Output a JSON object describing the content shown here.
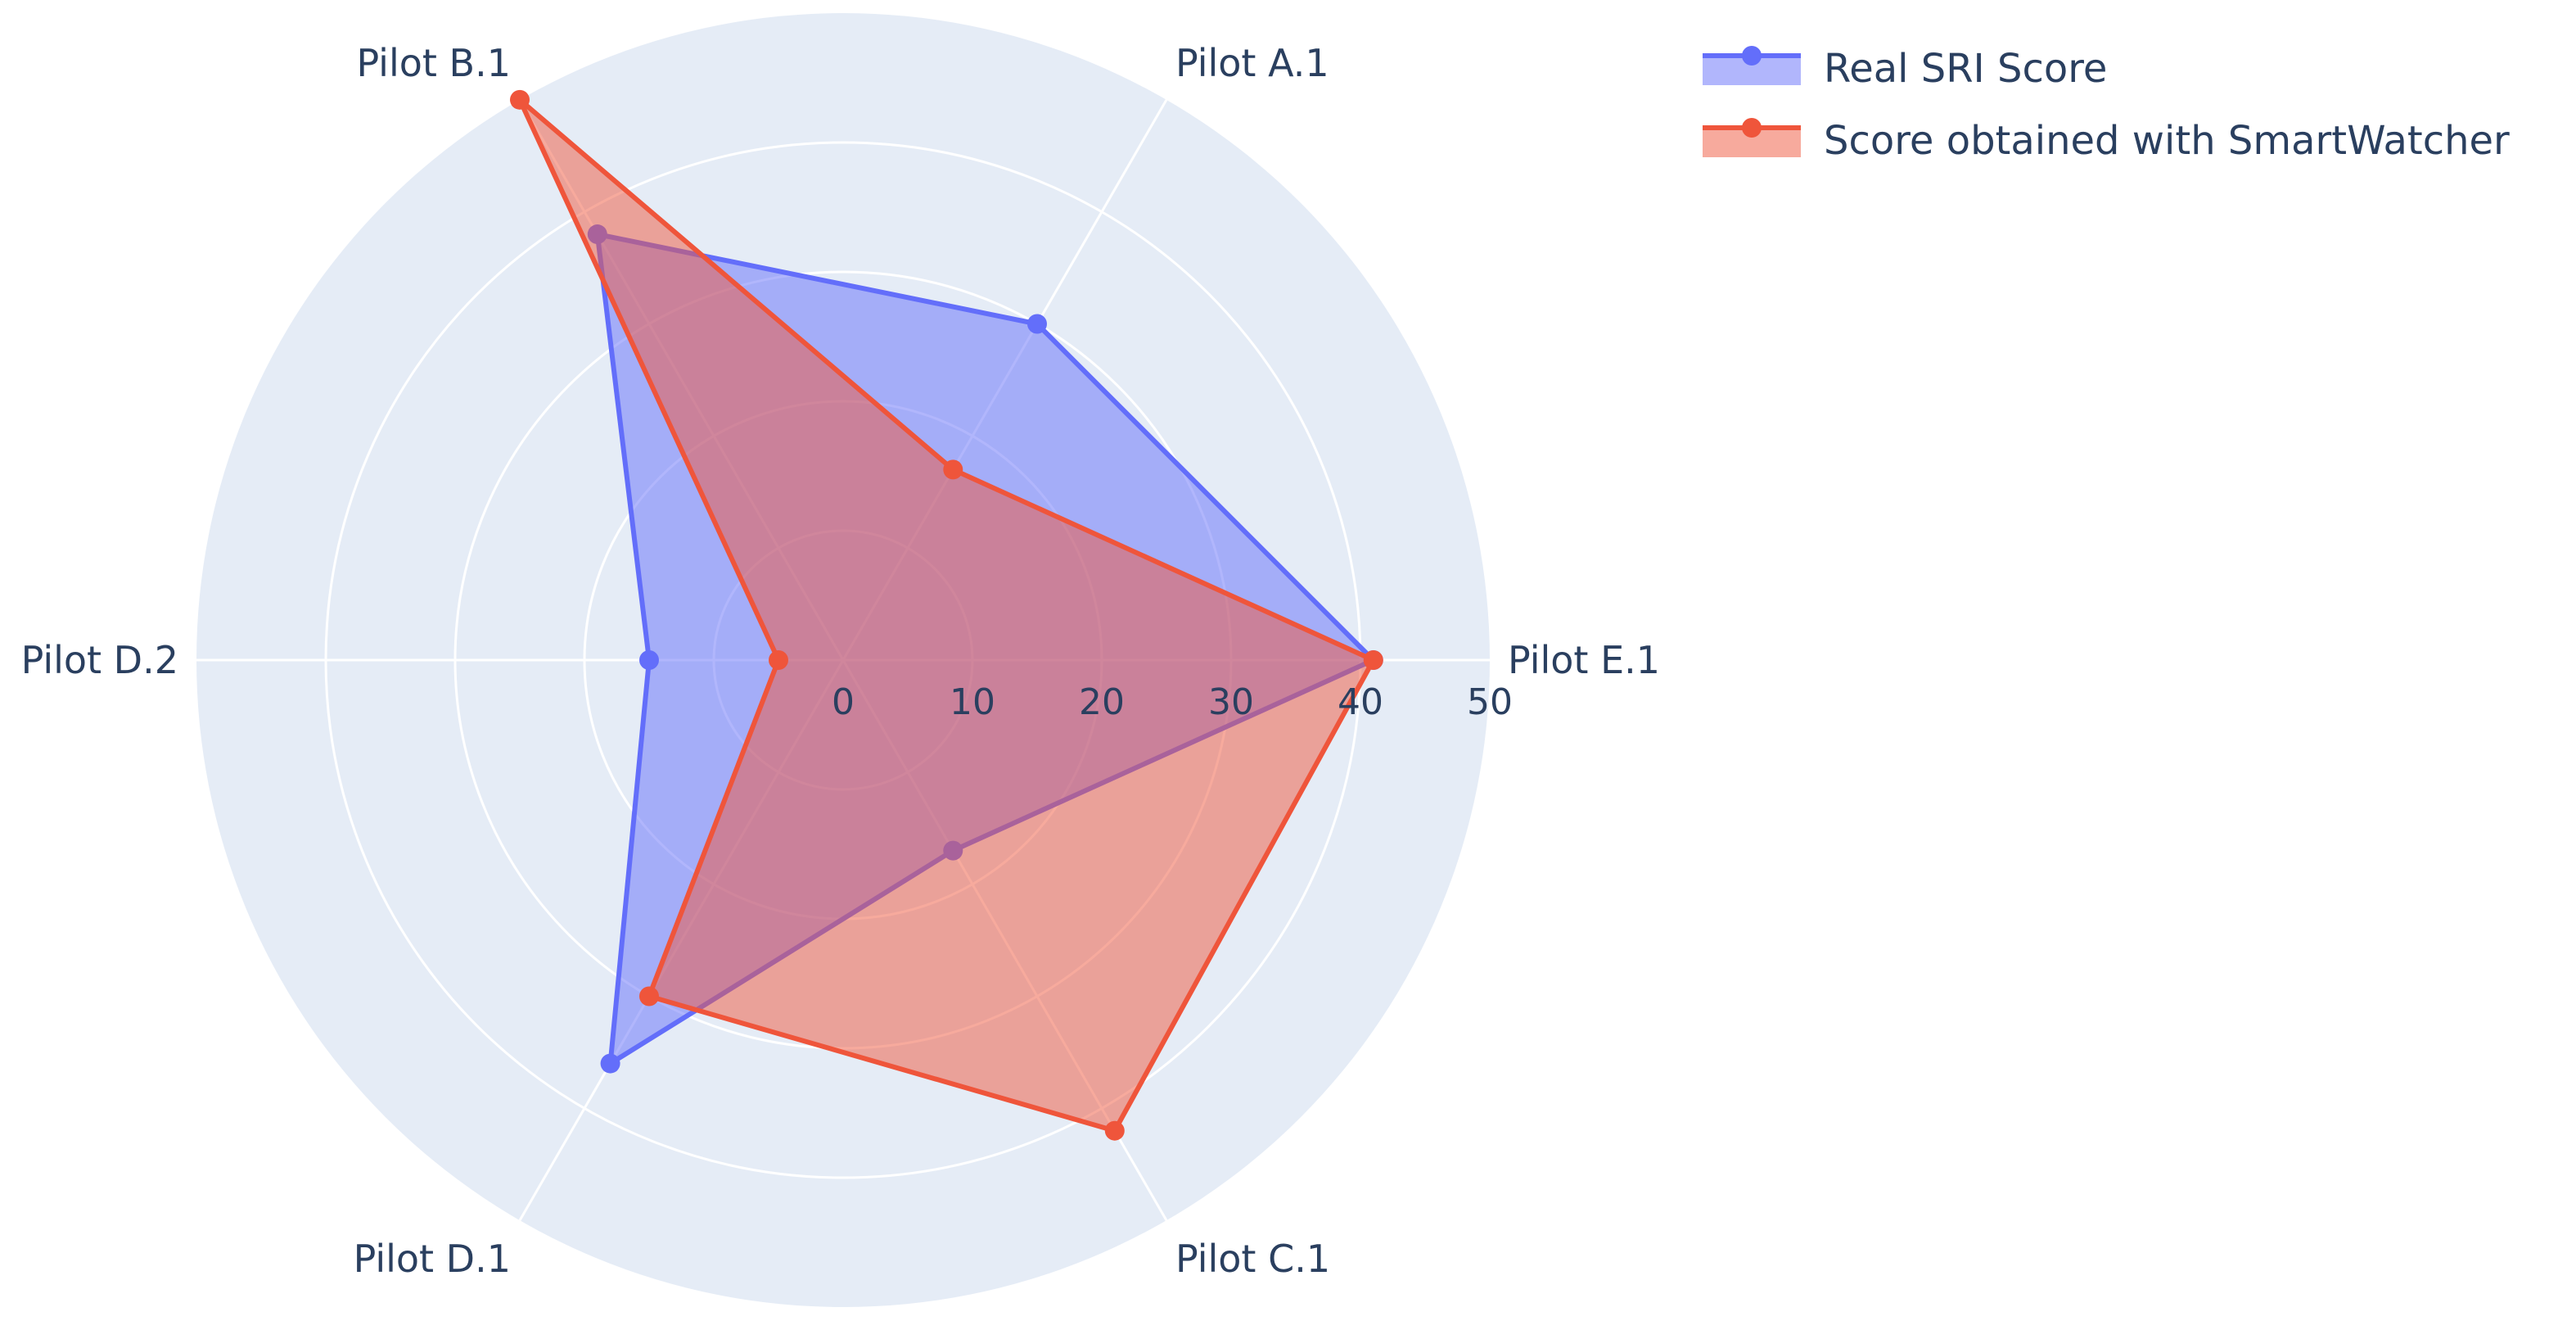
{
  "chart_data": {
    "type": "radar",
    "categories": [
      "Pilot E.1",
      "Pilot A.1",
      "Pilot B.1",
      "Pilot D.2",
      "Pilot D.1",
      "Pilot C.1"
    ],
    "radial_ticks": [
      "0",
      "10",
      "20",
      "30",
      "40",
      "50"
    ],
    "rlim": [
      0,
      50
    ],
    "series": [
      {
        "name": "Real SRI Score",
        "values": [
          41,
          30,
          38,
          15,
          36,
          17
        ],
        "color": "#636efa"
      },
      {
        "name": "Score obtained with SmartWatcher",
        "values": [
          41,
          17,
          50,
          5,
          30,
          42
        ],
        "color": "#ef553b"
      }
    ],
    "legend": "top-right",
    "grid": true
  }
}
